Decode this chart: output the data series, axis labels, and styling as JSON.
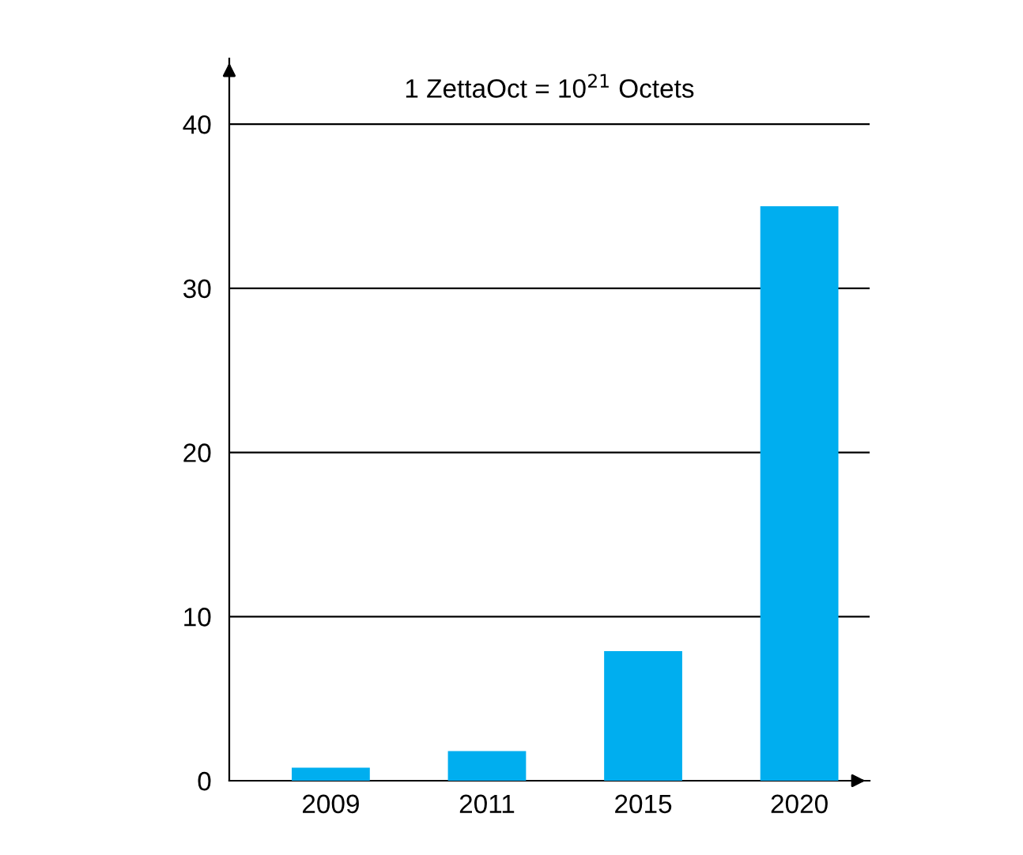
{
  "chart_data": {
    "type": "bar",
    "title": "1 ZettaOct = 10$^{21}$ Octets",
    "categories": [
      "2009",
      "2011",
      "2015",
      "2020"
    ],
    "values": [
      0.8,
      1.8,
      7.9,
      35
    ],
    "color": "#00aeef",
    "ylim": [
      0,
      44
    ],
    "yticks": [
      0,
      10,
      20,
      30,
      40
    ],
    "grid": "y"
  }
}
